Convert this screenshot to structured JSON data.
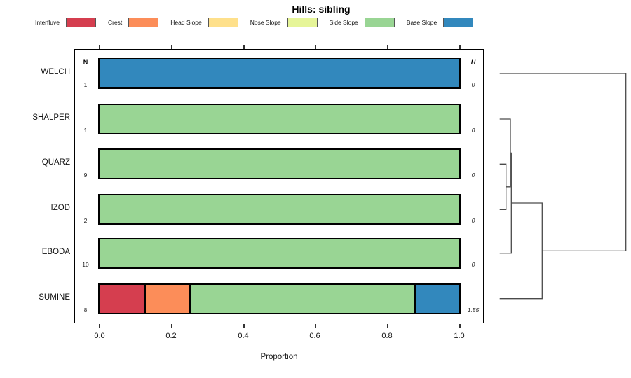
{
  "title": "Hills: sibling",
  "legend": {
    "items": [
      {
        "label": "Interfluve",
        "color": "#D53E4F"
      },
      {
        "label": "Crest",
        "color": "#FC8D59"
      },
      {
        "label": "Head Slope",
        "color": "#FEE08B"
      },
      {
        "label": "Nose Slope",
        "color": "#E6F598"
      },
      {
        "label": "Side Slope",
        "color": "#99D594"
      },
      {
        "label": "Base Slope",
        "color": "#3288BD"
      }
    ]
  },
  "columns": {
    "n_header": "N",
    "h_header": "H"
  },
  "axis": {
    "ticks": [
      "0.0",
      "0.2",
      "0.4",
      "0.6",
      "0.8",
      "1.0"
    ],
    "xlabel": "Proportion"
  },
  "rows": [
    {
      "label": "WELCH",
      "n": "1",
      "h": "0",
      "segments": [
        {
          "class": "Base Slope",
          "color": "#3288BD",
          "value": 1
        }
      ]
    },
    {
      "label": "SHALPER",
      "n": "1",
      "h": "0",
      "segments": [
        {
          "class": "Side Slope",
          "color": "#99D594",
          "value": 1
        }
      ]
    },
    {
      "label": "QUARZ",
      "n": "9",
      "h": "0",
      "segments": [
        {
          "class": "Side Slope",
          "color": "#99D594",
          "value": 1
        }
      ]
    },
    {
      "label": "IZOD",
      "n": "2",
      "h": "0",
      "segments": [
        {
          "class": "Side Slope",
          "color": "#99D594",
          "value": 1
        }
      ]
    },
    {
      "label": "EBODA",
      "n": "10",
      "h": "0",
      "segments": [
        {
          "class": "Side Slope",
          "color": "#99D594",
          "value": 1
        }
      ]
    },
    {
      "label": "SUMINE",
      "n": "8",
      "h": "1.55",
      "segments": [
        {
          "class": "Interfluve",
          "color": "#D53E4F",
          "value": 0.125
        },
        {
          "class": "Crest",
          "color": "#FC8D59",
          "value": 0.125
        },
        {
          "class": "Side Slope",
          "color": "#99D594",
          "value": 0.625
        },
        {
          "class": "Base Slope",
          "color": "#3288BD",
          "value": 0.125
        }
      ]
    }
  ],
  "chart_data": {
    "type": "bar",
    "orientation": "horizontal",
    "stacked": true,
    "title": "Hills: sibling",
    "xlabel": "Proportion",
    "xlim": [
      0,
      1
    ],
    "xticks": [
      0.0,
      0.2,
      0.4,
      0.6,
      0.8,
      1.0
    ],
    "grid": false,
    "legend_position": "top",
    "classes": [
      "Interfluve",
      "Crest",
      "Head Slope",
      "Nose Slope",
      "Side Slope",
      "Base Slope"
    ],
    "class_colors": [
      "#D53E4F",
      "#FC8D59",
      "#FEE08B",
      "#E6F598",
      "#99D594",
      "#3288BD"
    ],
    "categories": [
      "WELCH",
      "SHALPER",
      "QUARZ",
      "IZOD",
      "EBODA",
      "SUMINE"
    ],
    "N": [
      1,
      1,
      9,
      2,
      10,
      8
    ],
    "H": [
      0,
      0,
      0,
      0,
      0,
      1.55
    ],
    "series": [
      {
        "name": "Interfluve",
        "values": [
          0,
          0,
          0,
          0,
          0,
          0.125
        ]
      },
      {
        "name": "Crest",
        "values": [
          0,
          0,
          0,
          0,
          0,
          0.125
        ]
      },
      {
        "name": "Head Slope",
        "values": [
          0,
          0,
          0,
          0,
          0,
          0
        ]
      },
      {
        "name": "Nose Slope",
        "values": [
          0,
          0,
          0,
          0,
          0,
          0
        ]
      },
      {
        "name": "Side Slope",
        "values": [
          0,
          1,
          1,
          1,
          1,
          0.625
        ]
      },
      {
        "name": "Base Slope",
        "values": [
          1,
          0,
          0,
          0,
          0,
          0.125
        ]
      }
    ],
    "dendrogram": {
      "leaves": [
        "WELCH",
        "SHALPER",
        "QUARZ",
        "IZOD",
        "EBODA",
        "SUMINE"
      ],
      "merges": [
        {
          "members": [
            "QUARZ",
            "IZOD"
          ],
          "relative_height": 0.05
        },
        {
          "members": [
            "SHALPER",
            "QUARZ+IZOD"
          ],
          "relative_height": 0.085
        },
        {
          "members": [
            "SHALPER+QUARZ+IZOD",
            "EBODA"
          ],
          "relative_height": 0.092
        },
        {
          "members": [
            "cluster",
            "SUMINE"
          ],
          "relative_height": 0.337
        },
        {
          "members": [
            "cluster",
            "WELCH"
          ],
          "relative_height": 1.0
        }
      ]
    }
  }
}
